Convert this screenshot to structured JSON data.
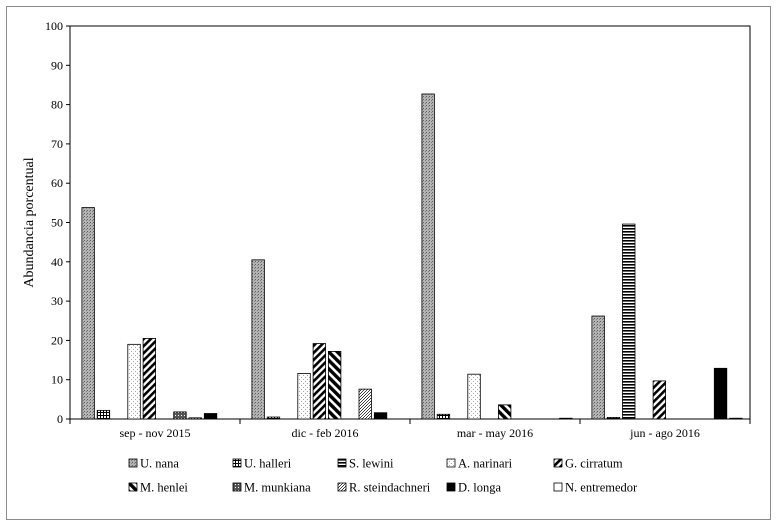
{
  "chart_data": {
    "type": "bar",
    "ylabel": "Abundancia porcentual",
    "xlabel": "",
    "ylim": [
      0,
      100
    ],
    "yticks": [
      0,
      10,
      20,
      30,
      40,
      50,
      60,
      70,
      80,
      90,
      100
    ],
    "grid": false,
    "legend_position": "bottom",
    "categories": [
      "sep - nov 2015",
      "dic - feb 2016",
      "mar - may 2016",
      "jun - ago 2016"
    ],
    "series": [
      {
        "name": "U. nana",
        "values": [
          53.8,
          40.5,
          82.7,
          26.2
        ]
      },
      {
        "name": "U. halleri",
        "values": [
          2.2,
          0.5,
          1.2,
          0.4
        ]
      },
      {
        "name": "S. lewini",
        "values": [
          0,
          0,
          0,
          49.6
        ]
      },
      {
        "name": "A. narinari",
        "values": [
          19.0,
          11.6,
          11.4,
          0
        ]
      },
      {
        "name": "G. cirratum",
        "values": [
          20.5,
          19.2,
          0,
          9.7
        ]
      },
      {
        "name": "M. henlei",
        "values": [
          0,
          17.2,
          3.6,
          0
        ]
      },
      {
        "name": "M. munkiana",
        "values": [
          1.8,
          0,
          0,
          0
        ]
      },
      {
        "name": "R. steindachneri",
        "values": [
          0.3,
          7.6,
          0,
          0
        ]
      },
      {
        "name": "D. longa",
        "values": [
          1.4,
          1.6,
          0,
          12.9
        ]
      },
      {
        "name": "N. entremedor",
        "values": [
          0,
          0,
          0.2,
          0.2
        ]
      }
    ]
  },
  "colors": {
    "bar_outline": "#000000",
    "u_nana_fill": "#9a9a9a",
    "d_longa_fill": "#000000",
    "axis": "#000000"
  }
}
